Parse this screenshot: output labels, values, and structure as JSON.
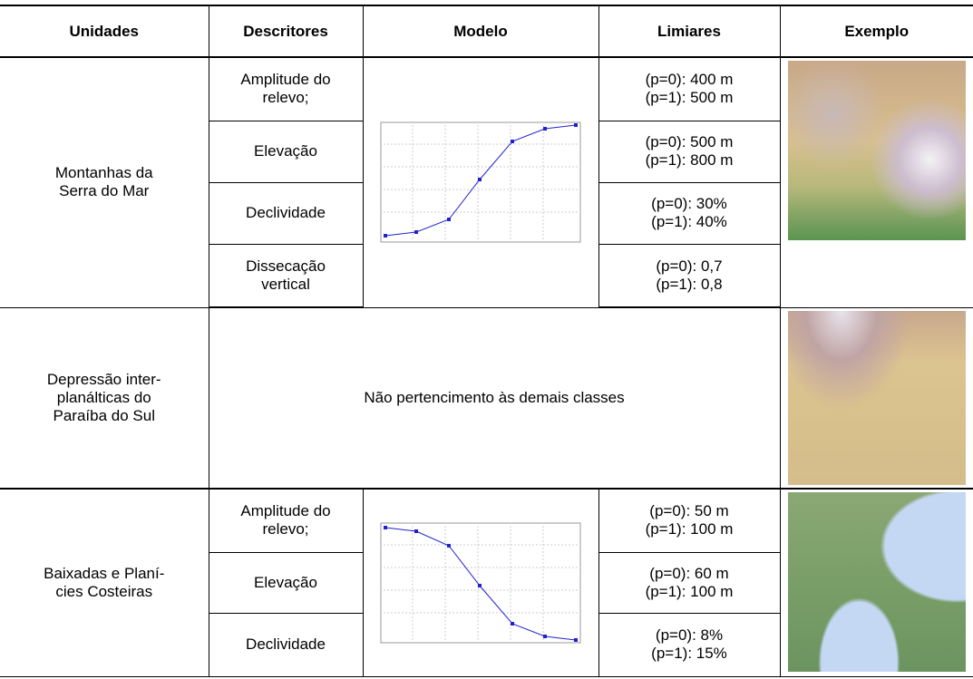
{
  "table": {
    "headers": [
      "Unidades",
      "Descritores",
      "Modelo",
      "Limiares",
      "Exemplo"
    ],
    "sections": [
      {
        "unit": [
          "Montanhas da",
          "Serra do Mar"
        ],
        "rows": [
          {
            "descriptor": [
              "Amplitude do",
              "relevo;"
            ],
            "thresholds": [
              "(p=0): 400 m",
              "(p=1): 500 m"
            ]
          },
          {
            "descriptor": [
              "Elevação"
            ],
            "thresholds": [
              "(p=0): 500 m",
              "(p=1): 800 m"
            ]
          },
          {
            "descriptor": [
              "Declividade"
            ],
            "thresholds": [
              "(p=0): 30%",
              "(p=1): 40%"
            ]
          },
          {
            "descriptor": [
              "Dissecação",
              "vertical"
            ],
            "thresholds": [
              "(p=0): 0,7",
              "(p=1): 0,8"
            ]
          }
        ]
      },
      {
        "unit": [
          "Depressão inter-",
          "planálticas do",
          "Paraíba do Sul"
        ],
        "note": "Não pertencimento às demais classes"
      },
      {
        "unit": [
          "Baixadas e Planí-",
          "cies Costeiras"
        ],
        "rows": [
          {
            "descriptor": [
              "Amplitude do",
              "relevo;"
            ],
            "thresholds": [
              "(p=0): 50 m",
              "(p=1): 100 m"
            ]
          },
          {
            "descriptor": [
              "Elevação"
            ],
            "thresholds": [
              "(p=0): 60 m",
              "(p=1): 100 m"
            ]
          },
          {
            "descriptor": [
              "Declividade"
            ],
            "thresholds": [
              "(p=0): 8%",
              "(p=1): 15%"
            ]
          }
        ]
      }
    ]
  }
}
